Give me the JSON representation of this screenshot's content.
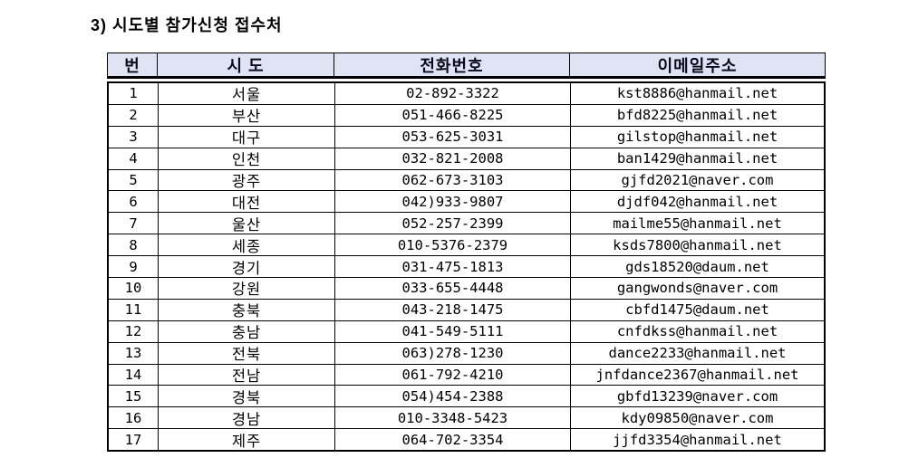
{
  "title": "3) 시도별 참가신청 접수처",
  "table": {
    "columns": [
      "번",
      "시  도",
      "전화번호",
      "이메일주소"
    ],
    "rows": [
      {
        "no": "1",
        "sido": "서울",
        "phone": "02-892-3322",
        "email": "kst8886@hanmail.net"
      },
      {
        "no": "2",
        "sido": "부산",
        "phone": "051-466-8225",
        "email": "bfd8225@hanmail.net"
      },
      {
        "no": "3",
        "sido": "대구",
        "phone": "053-625-3031",
        "email": "gilstop@hanmail.net"
      },
      {
        "no": "4",
        "sido": "인천",
        "phone": "032-821-2008",
        "email": "ban1429@hanmail.net"
      },
      {
        "no": "5",
        "sido": "광주",
        "phone": "062-673-3103",
        "email": "gjfd2021@naver.com"
      },
      {
        "no": "6",
        "sido": "대전",
        "phone": "042)933-9807",
        "email": "djdf042@hanmail.net"
      },
      {
        "no": "7",
        "sido": "울산",
        "phone": "052-257-2399",
        "email": "mailme55@hanmail.net"
      },
      {
        "no": "8",
        "sido": "세종",
        "phone": "010-5376-2379",
        "email": "ksds7800@hanmail.net"
      },
      {
        "no": "9",
        "sido": "경기",
        "phone": "031-475-1813",
        "email": "gds18520@daum.net"
      },
      {
        "no": "10",
        "sido": "강원",
        "phone": "033-655-4448",
        "email": "gangwonds@naver.com"
      },
      {
        "no": "11",
        "sido": "충북",
        "phone": "043-218-1475",
        "email": "cbfd1475@daum.net"
      },
      {
        "no": "12",
        "sido": "충남",
        "phone": "041-549-5111",
        "email": "cnfdkss@hanmail.net"
      },
      {
        "no": "13",
        "sido": "전북",
        "phone": "063)278-1230",
        "email": "dance2233@hanmail.net"
      },
      {
        "no": "14",
        "sido": "전남",
        "phone": "061-792-4210",
        "email": "jnfdance2367@hanmail.net"
      },
      {
        "no": "15",
        "sido": "경북",
        "phone": "054)454-2388",
        "email": "gbfd13239@naver.com"
      },
      {
        "no": "16",
        "sido": "경남",
        "phone": "010-3348-5423",
        "email": "kdy09850@naver.com"
      },
      {
        "no": "17",
        "sido": "제주",
        "phone": "064-702-3354",
        "email": "jjfd3354@hanmail.net"
      }
    ]
  },
  "colors": {
    "header_fill": "#e0e3f3",
    "border": "#000000",
    "text": "#000000"
  }
}
